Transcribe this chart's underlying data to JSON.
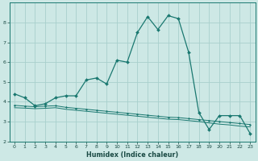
{
  "title": "",
  "xlabel": "Humidex (Indice chaleur)",
  "ylabel": "",
  "background_color": "#cde8e5",
  "grid_color": "#a8d0cc",
  "line_color": "#1a7870",
  "xlim": [
    -0.5,
    23.5
  ],
  "ylim": [
    2.0,
    9.0
  ],
  "yticks": [
    2,
    3,
    4,
    5,
    6,
    7,
    8
  ],
  "xticks": [
    0,
    1,
    2,
    3,
    4,
    5,
    6,
    7,
    8,
    9,
    10,
    11,
    12,
    13,
    14,
    15,
    16,
    17,
    18,
    19,
    20,
    21,
    22,
    23
  ],
  "series1_x": [
    0,
    1,
    2,
    3,
    4,
    5,
    6,
    7,
    8,
    9,
    10,
    11,
    12,
    13,
    14,
    15,
    16,
    17,
    18,
    19,
    20,
    21,
    22,
    23
  ],
  "series1_y": [
    4.4,
    4.2,
    3.8,
    3.9,
    4.2,
    4.3,
    4.3,
    5.1,
    5.2,
    4.9,
    6.1,
    6.0,
    7.5,
    8.3,
    7.65,
    8.35,
    8.2,
    6.5,
    3.45,
    2.6,
    3.3,
    3.3,
    3.3,
    2.4
  ],
  "series2_x": [
    0,
    1,
    2,
    3,
    4,
    5,
    6,
    7,
    8,
    9,
    10,
    11,
    12,
    13,
    14,
    15,
    16,
    17,
    18,
    19,
    20,
    21,
    22,
    23
  ],
  "series2_y": [
    3.82,
    3.78,
    3.75,
    3.78,
    3.8,
    3.72,
    3.67,
    3.62,
    3.57,
    3.52,
    3.47,
    3.42,
    3.37,
    3.32,
    3.27,
    3.22,
    3.2,
    3.15,
    3.1,
    3.05,
    3.0,
    2.95,
    2.9,
    2.85
  ],
  "series3_x": [
    0,
    1,
    2,
    3,
    4,
    5,
    6,
    7,
    8,
    9,
    10,
    11,
    12,
    13,
    14,
    15,
    16,
    17,
    18,
    19,
    20,
    21,
    22,
    23
  ],
  "series3_y": [
    3.7,
    3.68,
    3.65,
    3.67,
    3.7,
    3.62,
    3.57,
    3.52,
    3.47,
    3.42,
    3.37,
    3.32,
    3.27,
    3.22,
    3.17,
    3.12,
    3.1,
    3.05,
    3.0,
    2.93,
    2.87,
    2.83,
    2.77,
    2.73
  ]
}
